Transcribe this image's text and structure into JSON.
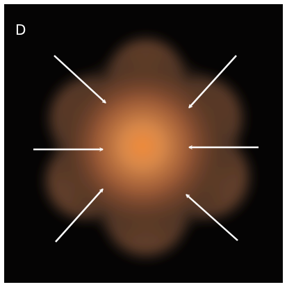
{
  "panel_label": "D"
}
